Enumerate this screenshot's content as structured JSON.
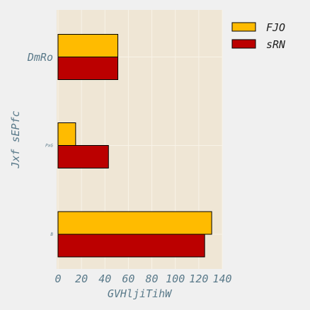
{
  "chart_data": {
    "type": "bar",
    "orientation": "horizontal",
    "categories": [
      "DmRo",
      "PxG",
      "B"
    ],
    "series": [
      {
        "name": "FJO",
        "values": [
          51,
          15,
          131
        ],
        "color": "#ffbb00"
      },
      {
        "name": "sRN",
        "values": [
          51,
          43,
          125
        ],
        "color": "#bb0000"
      }
    ],
    "xlabel": "GVHljiTihW",
    "ylabel": "Jxf sEPfc",
    "xlim": [
      0,
      140
    ],
    "xticks": [
      0,
      20,
      40,
      60,
      80,
      100,
      120,
      140
    ],
    "grid": true,
    "legend_position": "top-right",
    "plot_background": "#efe6d5",
    "grid_color": "#f8f3e8"
  }
}
